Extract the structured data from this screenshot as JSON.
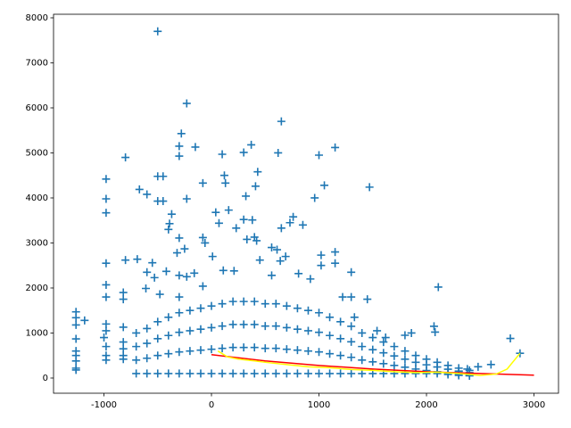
{
  "chart_data": {
    "type": "scatter",
    "xlim": [
      -1469,
      3228
    ],
    "ylim": [
      -337,
      8079
    ],
    "xticks": [
      -1000,
      0,
      1000,
      2000,
      3000
    ],
    "yticks": [
      0,
      1000,
      2000,
      3000,
      4000,
      5000,
      6000,
      7000,
      8000
    ],
    "grid": false,
    "marker": "+",
    "series": [
      {
        "color": "#1f77b4",
        "x": [
          -500,
          -230,
          650,
          -280,
          370,
          1150,
          -150,
          -300,
          -300,
          100,
          620,
          1000,
          300,
          -800,
          -980,
          -500,
          -450,
          120,
          430,
          1050,
          1470,
          410,
          -670,
          -600,
          -80,
          130,
          -980,
          -230,
          -500,
          -450,
          320,
          960,
          -980,
          -370,
          -390,
          -400,
          40,
          160,
          70,
          300,
          760,
          730,
          850,
          650,
          380,
          -300,
          -250,
          -320,
          -80,
          -60,
          10,
          230,
          330,
          400,
          420,
          560,
          610,
          690,
          640,
          -690,
          -800,
          -980,
          -550,
          -600,
          -530,
          -160,
          -230,
          -420,
          -300,
          -80,
          110,
          210,
          450,
          560,
          810,
          1020,
          1150,
          1150,
          1020,
          1300,
          920,
          2110,
          -980,
          -980,
          -820,
          -820,
          -610,
          -480,
          -300,
          1300,
          1450,
          1220,
          -1260,
          -1260,
          -1180,
          -1260,
          -1260,
          -1260,
          -1260,
          -1260,
          -1260,
          -1260,
          -980,
          -980,
          -1000,
          -980,
          -980,
          -980,
          -820,
          -820,
          -820,
          -820,
          -820,
          2070,
          2080,
          1800,
          1860,
          1620,
          1540,
          1330,
          2780,
          2870,
          2600,
          2480,
          2380,
          2300
        ],
        "values": [
          7700,
          6100,
          5700,
          5430,
          5180,
          5120,
          5130,
          5150,
          4930,
          4970,
          5000,
          4950,
          5010,
          4900,
          4420,
          4480,
          4480,
          4500,
          4580,
          4280,
          4240,
          4260,
          4190,
          4080,
          4330,
          4330,
          3980,
          3980,
          3930,
          3930,
          4040,
          4000,
          3670,
          3640,
          3430,
          3300,
          3680,
          3730,
          3440,
          3520,
          3580,
          3450,
          3400,
          3330,
          3510,
          3110,
          2870,
          2780,
          3120,
          3000,
          2700,
          3330,
          3080,
          3130,
          3050,
          2900,
          2850,
          2700,
          2600,
          2640,
          2620,
          2550,
          2560,
          2350,
          2230,
          2330,
          2250,
          2370,
          2280,
          2040,
          2390,
          2380,
          2620,
          2280,
          2320,
          2730,
          2800,
          2550,
          2500,
          2350,
          2200,
          2020,
          2070,
          1800,
          1900,
          1750,
          1990,
          1860,
          1800,
          1800,
          1750,
          1800,
          1470,
          1340,
          1280,
          1180,
          870,
          600,
          500,
          380,
          220,
          180,
          1200,
          1050,
          900,
          700,
          500,
          400,
          1130,
          800,
          650,
          500,
          420,
          1150,
          1020,
          950,
          1000,
          900,
          1050,
          1350,
          880,
          550,
          300,
          250,
          200,
          150
        ]
      },
      {
        "color": "#1f77b4",
        "x": [
          -700,
          -600,
          -500,
          -400,
          -300,
          -200,
          -100,
          0,
          100,
          200,
          300,
          400,
          500,
          600,
          700,
          800,
          900,
          1000,
          1100,
          1200,
          1300,
          1400,
          1500,
          1600,
          1700,
          1800,
          1900,
          2000,
          2100,
          2200,
          2300,
          2400
        ],
        "values": [
          100,
          100,
          100,
          100,
          100,
          100,
          100,
          100,
          100,
          100,
          100,
          100,
          100,
          100,
          100,
          100,
          100,
          100,
          100,
          100,
          100,
          100,
          100,
          100,
          100,
          100,
          100,
          100,
          100,
          80,
          60,
          50
        ]
      },
      {
        "color": "#1f77b4",
        "x": [
          -700,
          -600,
          -500,
          -400,
          -300,
          -200,
          -100,
          0,
          100,
          200,
          300,
          400,
          500,
          600,
          700,
          800,
          900,
          1000,
          1100,
          1200,
          1300,
          1400,
          1500,
          1600,
          1700,
          1800,
          1900,
          2000,
          2100,
          2200,
          2300,
          2400
        ],
        "values": [
          400,
          440,
          500,
          540,
          580,
          600,
          620,
          640,
          660,
          680,
          680,
          680,
          660,
          660,
          640,
          620,
          600,
          580,
          540,
          500,
          460,
          400,
          360,
          320,
          280,
          240,
          200,
          168,
          140,
          112,
          88,
          68
        ]
      },
      {
        "color": "#1f77b4",
        "x": [
          -700,
          -600,
          -500,
          -400,
          -300,
          -200,
          -100,
          0,
          100,
          200,
          300,
          400,
          500,
          600,
          700,
          800,
          900,
          1000,
          1100,
          1200,
          1300,
          1400,
          1500,
          1600,
          1700,
          1800,
          1900,
          2000,
          2100,
          2200,
          2300,
          2400
        ],
        "values": [
          700,
          770,
          875,
          945,
          1015,
          1050,
          1085,
          1120,
          1155,
          1190,
          1190,
          1190,
          1155,
          1155,
          1120,
          1085,
          1050,
          1015,
          945,
          875,
          805,
          700,
          630,
          560,
          490,
          420,
          350,
          294,
          245,
          196,
          154,
          119
        ]
      },
      {
        "color": "#1f77b4",
        "x": [
          -700,
          -600,
          -500,
          -400,
          -300,
          -200,
          -100,
          0,
          100,
          200,
          300,
          400,
          500,
          600,
          700,
          800,
          900,
          1000,
          1100,
          1200,
          1300,
          1400,
          1500,
          1600,
          1700,
          1800,
          1900,
          2000,
          2100,
          2200,
          2300,
          2400
        ],
        "values": [
          1000,
          1100,
          1250,
          1350,
          1450,
          1500,
          1550,
          1600,
          1650,
          1700,
          1700,
          1700,
          1650,
          1650,
          1600,
          1550,
          1500,
          1450,
          1350,
          1250,
          1150,
          1000,
          900,
          800,
          700,
          600,
          500,
          420,
          350,
          280,
          220,
          170
        ]
      }
    ],
    "lines": [
      {
        "color": "#ff0000",
        "x": [
          0,
          500,
          1000,
          1500,
          2000,
          2500,
          3000
        ],
        "values": [
          520,
          380,
          280,
          200,
          140,
          100,
          65
        ]
      },
      {
        "color": "#ffff00",
        "x": [
          60,
          150,
          250,
          400,
          500,
          700,
          900,
          1100,
          1300,
          1500,
          1700,
          1900,
          2100,
          2300,
          2500,
          2650,
          2750,
          2870
        ],
        "values": [
          600,
          470,
          420,
          380,
          350,
          300,
          250,
          230,
          190,
          170,
          140,
          120,
          130,
          100,
          60,
          90,
          200,
          550
        ]
      }
    ]
  }
}
